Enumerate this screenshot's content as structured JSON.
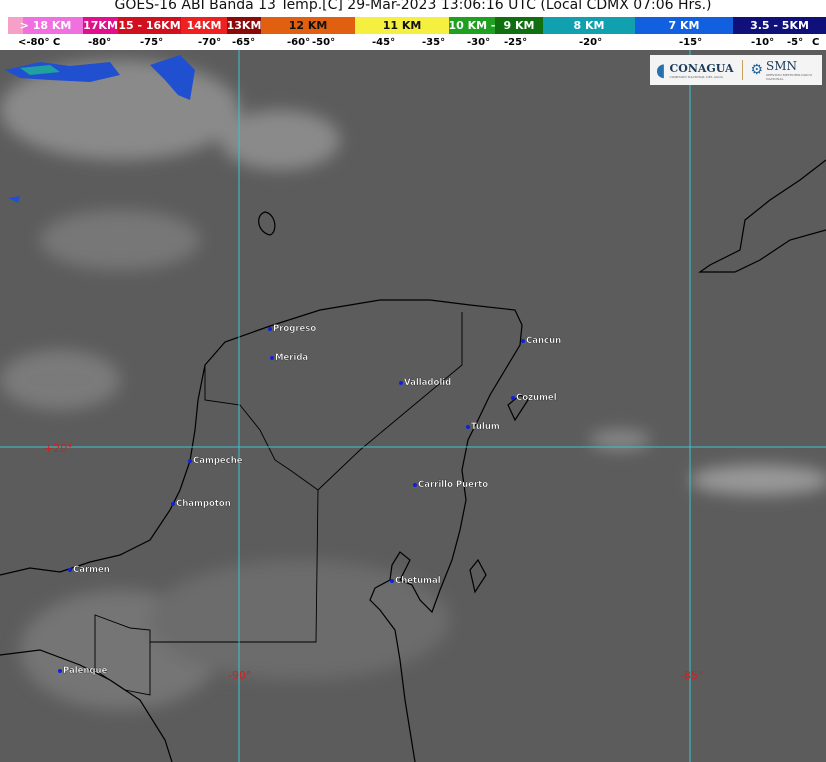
{
  "title": "GOES-16 ABI Banda 13 Temp.[C] 29-Mar-2023 13:06:16 UTC (Local CDMX  07:06 Hrs.)",
  "legend": [
    {
      "label": "> 18 KM",
      "color": "#f070e0"
    },
    {
      "label": "17KM",
      "color": "#e0108a"
    },
    {
      "label": "15 - 16KM",
      "color": "#d0101e"
    },
    {
      "label": "14KM",
      "color": "#ee2020"
    },
    {
      "label": "13KM",
      "color": "#8a0a0a"
    },
    {
      "label": "12 KM",
      "color": "#e06010"
    },
    {
      "label": "11 KM",
      "color": "#f5f040"
    },
    {
      "label": "10 KM -",
      "color": "#20a020"
    },
    {
      "label": "9 KM",
      "color": "#107010"
    },
    {
      "label": "8 KM",
      "color": "#10a0b0"
    },
    {
      "label": "7 KM",
      "color": "#1060e0"
    },
    {
      "label": "3.5 - 5KM",
      "color": "#10107a"
    }
  ],
  "temps": [
    "<-80° C",
    "-80°",
    "-75°",
    "-70°",
    "-65°",
    "-60°",
    "-50°",
    "-45°",
    "-35°",
    "-30°",
    "-25°",
    "-20°",
    "-15°",
    "-10°",
    "-5°",
    "C"
  ],
  "logos": {
    "conagua": "CONAGUA",
    "conagua_sub": "COMISIÓN NACIONAL DEL AGUA",
    "smn": "SMN",
    "smn_sub": "SERVICIO METEOROLÓGICO NACIONAL"
  },
  "grid_labels": {
    "lat20": "+20°",
    "lon90": "-90°",
    "lon85": "-85°"
  },
  "cities": [
    {
      "name": "Progreso"
    },
    {
      "name": "Merida"
    },
    {
      "name": "Valladolid"
    },
    {
      "name": "Cancun"
    },
    {
      "name": "Cozumel"
    },
    {
      "name": "Tulum"
    },
    {
      "name": "Campeche"
    },
    {
      "name": "Carrillo Puerto"
    },
    {
      "name": "Champoton"
    },
    {
      "name": "Carmen"
    },
    {
      "name": "Chetumal"
    },
    {
      "name": "Palenque"
    }
  ]
}
